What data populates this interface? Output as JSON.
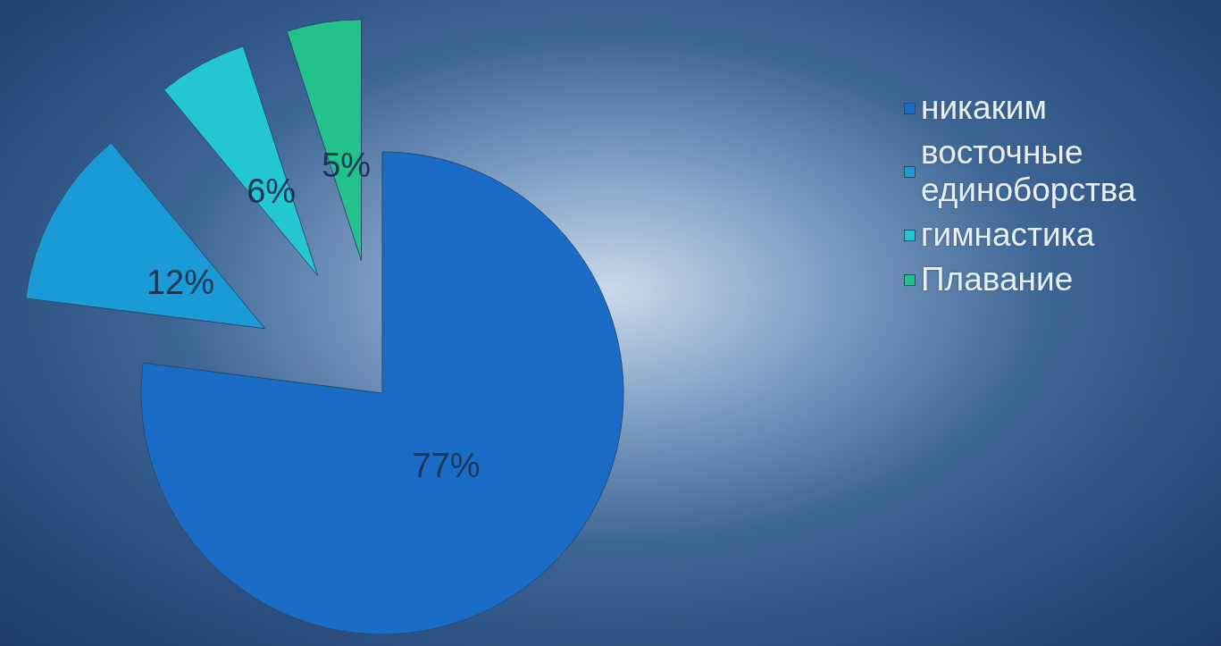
{
  "chart_data": {
    "type": "pie",
    "categories": [
      "никаким",
      "восточные единоборства",
      "гимнастика",
      "Плавание"
    ],
    "values": [
      77,
      12,
      6,
      5
    ],
    "value_labels": [
      "77%",
      "12%",
      "6%",
      "5%"
    ],
    "colors": [
      "#1a6cc6",
      "#1a9bd6",
      "#22c7d2",
      "#22c28a"
    ],
    "data_labels": true,
    "legend": "right"
  }
}
